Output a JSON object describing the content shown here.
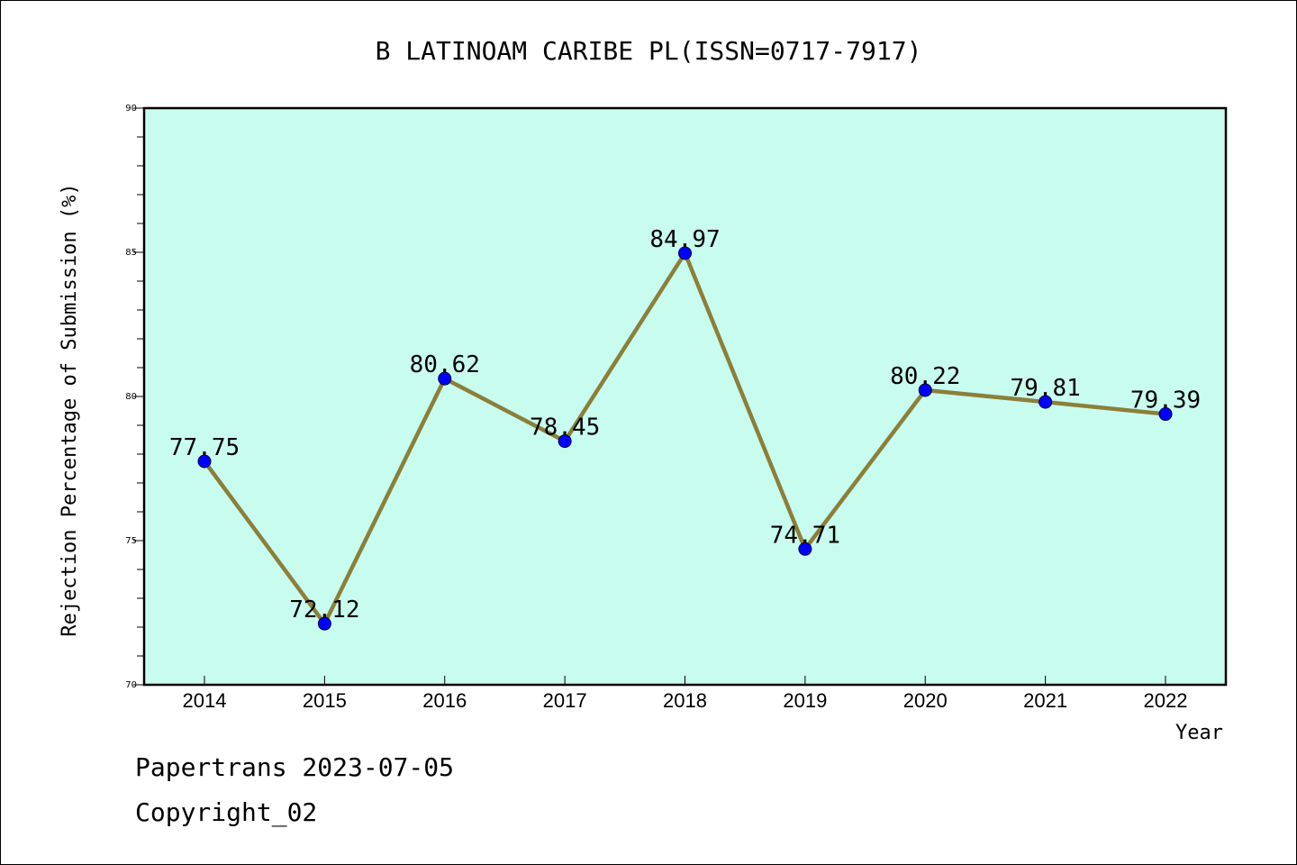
{
  "chart_data": {
    "type": "line",
    "title": "B LATINOAM CARIBE PL(ISSN=0717-7917)",
    "xlabel": "Year",
    "ylabel": "Rejection Percentage of Submission (%)",
    "ylim": [
      70,
      90
    ],
    "yticks": [
      70,
      75,
      80,
      85,
      90
    ],
    "grid": false,
    "legend": "none",
    "categories": [
      "2014",
      "2015",
      "2016",
      "2017",
      "2018",
      "2019",
      "2020",
      "2021",
      "2022"
    ],
    "series": [
      {
        "values": [
          77.75,
          72.12,
          80.62,
          78.45,
          84.97,
          74.71,
          80.22,
          79.81,
          79.39
        ],
        "data_labels": [
          "77.75",
          "72.12",
          "80.62",
          "78.45",
          "84.97",
          "74.71",
          "80.22",
          "79.81",
          "79.39"
        ]
      }
    ],
    "colors": {
      "plot_background": "#c8fcee",
      "line": "#8b7f3a",
      "marker": "#0000ff"
    }
  },
  "footer": {
    "line1": "Papertrans 2023-07-05",
    "line2": "Copyright_02"
  }
}
